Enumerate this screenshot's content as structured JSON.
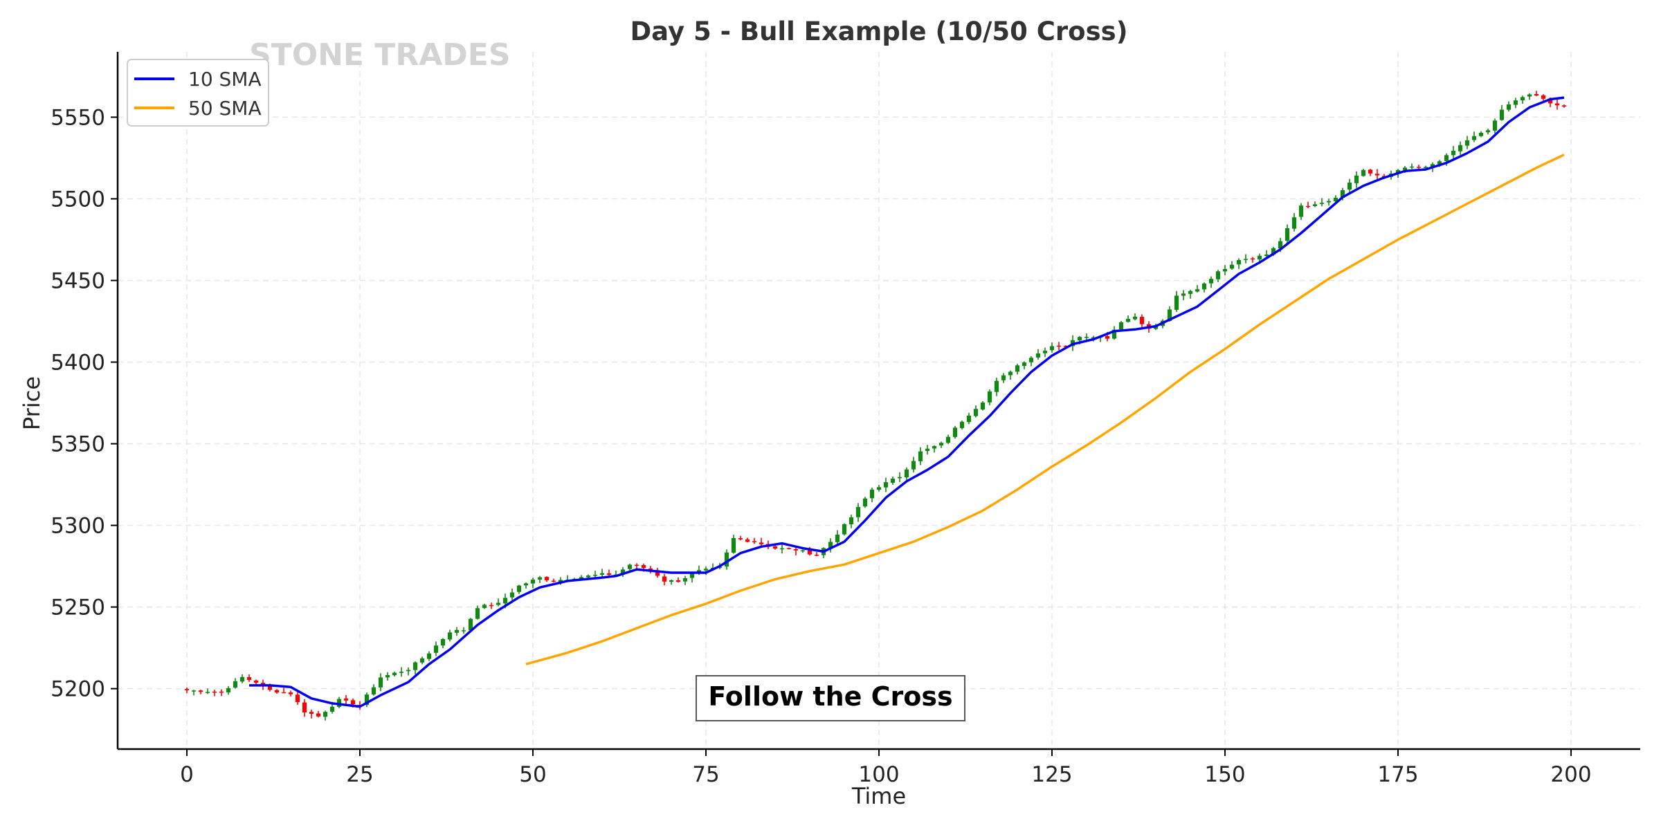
{
  "chart_data": {
    "type": "candlestick",
    "title": "Day 5 - Bull Example (10/50 Cross)",
    "xlabel": "Time",
    "ylabel": "Price",
    "xlim": [
      -10,
      210
    ],
    "ylim": [
      5163,
      5590
    ],
    "x_ticks": [
      0,
      25,
      50,
      75,
      100,
      125,
      150,
      175,
      200
    ],
    "y_ticks": [
      5200,
      5250,
      5300,
      5350,
      5400,
      5450,
      5500,
      5550
    ],
    "grid": true,
    "legend_position": "top-left",
    "watermark": "STONE TRADES",
    "annotation": "Follow the Cross",
    "colors": {
      "up": "#118811",
      "down": "#ff0000",
      "sma10": "#0000ee",
      "sma50": "#ffa500",
      "axis": "#000000"
    },
    "price_path": [
      [
        0,
        5199
      ],
      [
        5,
        5198
      ],
      [
        8,
        5207
      ],
      [
        10,
        5204
      ],
      [
        12,
        5199
      ],
      [
        15,
        5197
      ],
      [
        17,
        5186
      ],
      [
        19,
        5183
      ],
      [
        22,
        5193
      ],
      [
        25,
        5190
      ],
      [
        28,
        5207
      ],
      [
        32,
        5212
      ],
      [
        35,
        5222
      ],
      [
        38,
        5235
      ],
      [
        40,
        5236
      ],
      [
        42,
        5250
      ],
      [
        45,
        5252
      ],
      [
        48,
        5263
      ],
      [
        51,
        5268
      ],
      [
        53,
        5266
      ],
      [
        56,
        5268
      ],
      [
        60,
        5270
      ],
      [
        62,
        5270
      ],
      [
        64,
        5276
      ],
      [
        67,
        5273
      ],
      [
        69,
        5266
      ],
      [
        71,
        5266
      ],
      [
        74,
        5272
      ],
      [
        77,
        5274
      ],
      [
        79,
        5292
      ],
      [
        82,
        5290
      ],
      [
        85,
        5286
      ],
      [
        88,
        5285
      ],
      [
        91,
        5282
      ],
      [
        93,
        5290
      ],
      [
        96,
        5305
      ],
      [
        99,
        5322
      ],
      [
        101,
        5326
      ],
      [
        103,
        5330
      ],
      [
        106,
        5345
      ],
      [
        109,
        5350
      ],
      [
        112,
        5364
      ],
      [
        115,
        5376
      ],
      [
        117,
        5388
      ],
      [
        120,
        5398
      ],
      [
        122,
        5403
      ],
      [
        125,
        5410
      ],
      [
        127,
        5410
      ],
      [
        129,
        5416
      ],
      [
        131,
        5416
      ],
      [
        133,
        5415
      ],
      [
        135,
        5425
      ],
      [
        137,
        5428
      ],
      [
        139,
        5420
      ],
      [
        141,
        5425
      ],
      [
        143,
        5440
      ],
      [
        146,
        5445
      ],
      [
        149,
        5455
      ],
      [
        152,
        5463
      ],
      [
        154,
        5464
      ],
      [
        156,
        5466
      ],
      [
        158,
        5474
      ],
      [
        161,
        5496
      ],
      [
        163,
        5496
      ],
      [
        166,
        5500
      ],
      [
        168,
        5510
      ],
      [
        170,
        5517
      ],
      [
        173,
        5513
      ],
      [
        176,
        5519
      ],
      [
        179,
        5519
      ],
      [
        182,
        5526
      ],
      [
        185,
        5536
      ],
      [
        188,
        5542
      ],
      [
        190,
        5554
      ],
      [
        192,
        5561
      ],
      [
        194,
        5564
      ],
      [
        196,
        5561
      ],
      [
        198,
        5557
      ],
      [
        199,
        5557
      ]
    ],
    "series": [
      {
        "name": "10 SMA",
        "color": "#0000ee",
        "points": [
          [
            9,
            5202
          ],
          [
            12,
            5202
          ],
          [
            15,
            5201
          ],
          [
            18,
            5194
          ],
          [
            21,
            5191
          ],
          [
            25,
            5189
          ],
          [
            28,
            5196
          ],
          [
            32,
            5204
          ],
          [
            35,
            5215
          ],
          [
            38,
            5224
          ],
          [
            42,
            5239
          ],
          [
            45,
            5248
          ],
          [
            48,
            5256
          ],
          [
            51,
            5262
          ],
          [
            55,
            5266
          ],
          [
            60,
            5268
          ],
          [
            62,
            5269
          ],
          [
            65,
            5273
          ],
          [
            70,
            5271
          ],
          [
            75,
            5271
          ],
          [
            77,
            5275
          ],
          [
            80,
            5283
          ],
          [
            83,
            5287
          ],
          [
            86,
            5289
          ],
          [
            89,
            5286
          ],
          [
            92,
            5284
          ],
          [
            95,
            5290
          ],
          [
            98,
            5303
          ],
          [
            101,
            5317
          ],
          [
            104,
            5327
          ],
          [
            107,
            5334
          ],
          [
            110,
            5342
          ],
          [
            113,
            5355
          ],
          [
            116,
            5367
          ],
          [
            119,
            5381
          ],
          [
            122,
            5394
          ],
          [
            125,
            5404
          ],
          [
            128,
            5411
          ],
          [
            131,
            5414
          ],
          [
            134,
            5419
          ],
          [
            137,
            5420
          ],
          [
            140,
            5422
          ],
          [
            143,
            5428
          ],
          [
            146,
            5434
          ],
          [
            149,
            5444
          ],
          [
            152,
            5454
          ],
          [
            155,
            5461
          ],
          [
            158,
            5469
          ],
          [
            161,
            5479
          ],
          [
            164,
            5490
          ],
          [
            167,
            5501
          ],
          [
            170,
            5508
          ],
          [
            173,
            5513
          ],
          [
            176,
            5517
          ],
          [
            179,
            5518
          ],
          [
            182,
            5522
          ],
          [
            185,
            5528
          ],
          [
            188,
            5535
          ],
          [
            191,
            5547
          ],
          [
            194,
            5556
          ],
          [
            197,
            5561
          ],
          [
            199,
            5562
          ]
        ]
      },
      {
        "name": "50 SMA",
        "color": "#ffa500",
        "points": [
          [
            49,
            5215
          ],
          [
            55,
            5222
          ],
          [
            60,
            5229
          ],
          [
            65,
            5237
          ],
          [
            70,
            5245
          ],
          [
            75,
            5252
          ],
          [
            80,
            5260
          ],
          [
            85,
            5267
          ],
          [
            90,
            5272
          ],
          [
            95,
            5276
          ],
          [
            100,
            5283
          ],
          [
            105,
            5290
          ],
          [
            110,
            5299
          ],
          [
            115,
            5309
          ],
          [
            120,
            5322
          ],
          [
            125,
            5336
          ],
          [
            130,
            5349
          ],
          [
            135,
            5363
          ],
          [
            140,
            5378
          ],
          [
            145,
            5394
          ],
          [
            150,
            5408
          ],
          [
            155,
            5423
          ],
          [
            160,
            5437
          ],
          [
            165,
            5451
          ],
          [
            170,
            5463
          ],
          [
            175,
            5475
          ],
          [
            180,
            5486
          ],
          [
            185,
            5497
          ],
          [
            190,
            5508
          ],
          [
            195,
            5519
          ],
          [
            199,
            5527
          ]
        ]
      }
    ]
  }
}
